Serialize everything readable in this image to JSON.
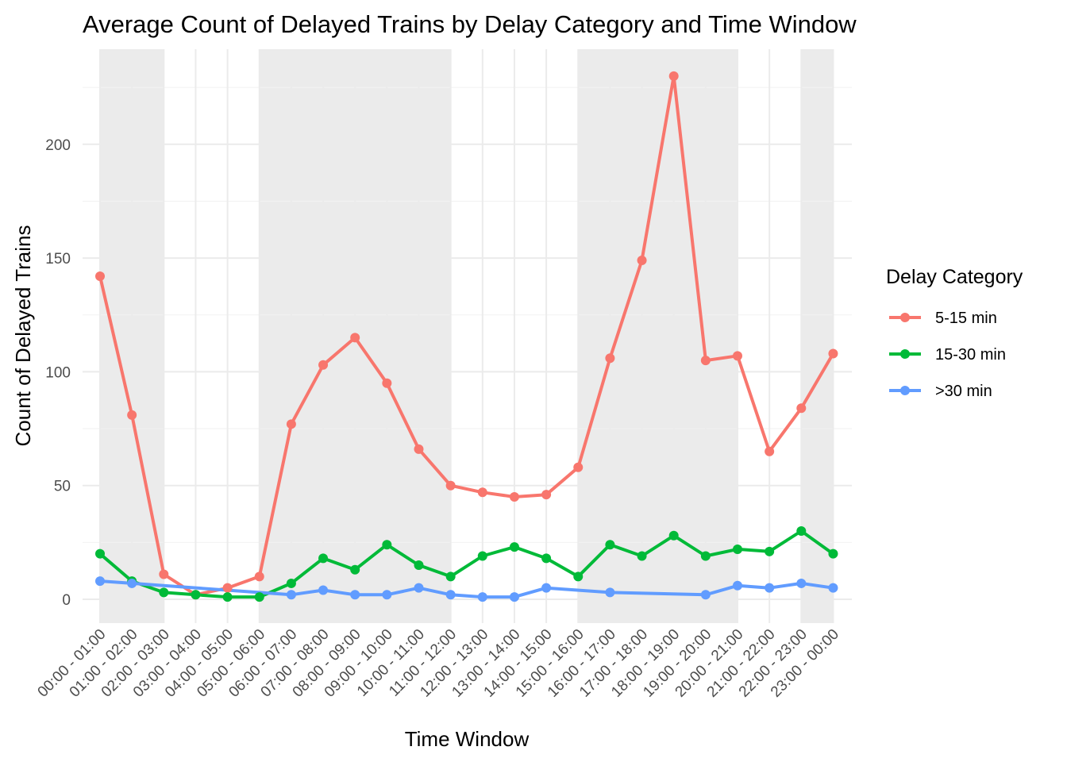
{
  "chart_data": {
    "type": "line",
    "title": "Average Count of Delayed Trains by Delay Category and Time Window",
    "xlabel": "Time Window",
    "ylabel": "Count of Delayed Trains",
    "ylim": [
      -10.7,
      234.2
    ],
    "yticks": [
      0,
      50,
      100,
      150,
      200
    ],
    "grid": true,
    "legend_title": "Delay Category",
    "legend_position": "right",
    "categories": [
      "00:00 - 01:00",
      "01:00 - 02:00",
      "02:00 - 03:00",
      "03:00 - 04:00",
      "04:00 - 05:00",
      "05:00 - 06:00",
      "06:00 - 07:00",
      "07:00 - 08:00",
      "08:00 - 09:00",
      "09:00 - 10:00",
      "10:00 - 11:00",
      "11:00 - 12:00",
      "12:00 - 13:00",
      "13:00 - 14:00",
      "14:00 - 15:00",
      "15:00 - 16:00",
      "16:00 - 17:00",
      "17:00 - 18:00",
      "18:00 - 19:00",
      "19:00 - 20:00",
      "20:00 - 21:00",
      "21:00 - 22:00",
      "22:00 - 23:00",
      "23:00 - 00:00"
    ],
    "shaded_bands": [
      {
        "from": "00:00 - 01:00",
        "to": "02:00 - 03:00"
      },
      {
        "from": "05:00 - 06:00",
        "to": "11:00 - 12:00"
      },
      {
        "from": "15:00 - 16:00",
        "to": "20:00 - 21:00"
      },
      {
        "from": "22:00 - 23:00",
        "to": "23:00 - 00:00"
      }
    ],
    "series": [
      {
        "name": "5-15 min",
        "color": "#F8766D",
        "values": [
          142,
          81,
          11,
          2,
          5,
          10,
          77,
          103,
          115,
          95,
          66,
          50,
          47,
          45,
          46,
          58,
          106,
          149,
          230,
          105,
          107,
          65,
          84,
          108
        ]
      },
      {
        "name": "15-30 min",
        "color": "#00BA38",
        "values": [
          20,
          8,
          3,
          2,
          1,
          1,
          7,
          18,
          13,
          24,
          15,
          10,
          19,
          23,
          18,
          10,
          24,
          19,
          28,
          19,
          22,
          21,
          30,
          20
        ]
      },
      {
        "name": ">30 min",
        "color": "#619CFF",
        "values": [
          8,
          7,
          null,
          null,
          null,
          null,
          2,
          4,
          2,
          2,
          5,
          2,
          1,
          1,
          5,
          null,
          3,
          null,
          null,
          2,
          6,
          5,
          7,
          5
        ]
      }
    ]
  }
}
